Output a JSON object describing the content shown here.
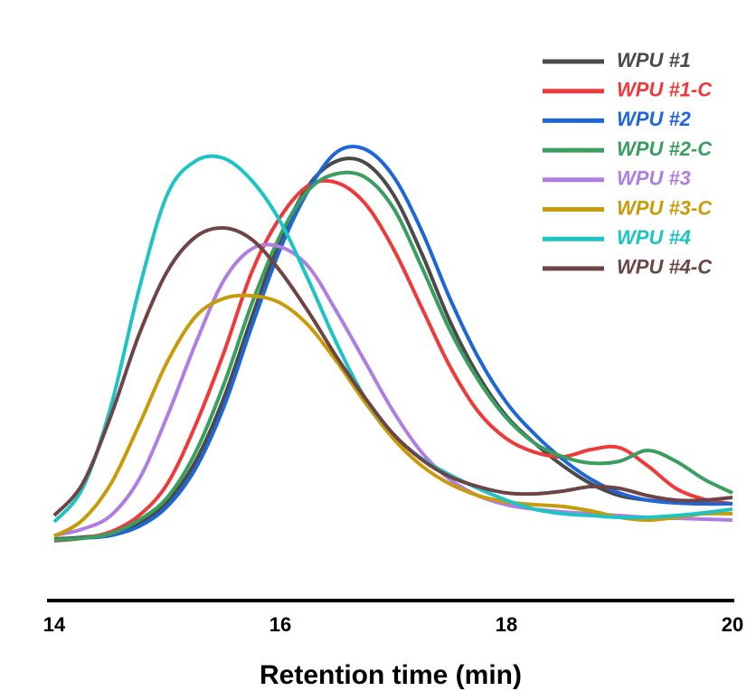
{
  "chart_data": {
    "type": "line",
    "xlabel": "Retention time (min)",
    "x": [
      14,
      14.25,
      14.5,
      14.75,
      15,
      15.25,
      15.5,
      15.75,
      16,
      16.25,
      16.5,
      16.75,
      17,
      17.25,
      17.5,
      17.75,
      18,
      18.25,
      18.5,
      18.75,
      19,
      19.25,
      19.5,
      19.75,
      20
    ],
    "xlim": [
      14,
      20
    ],
    "xticks": [
      14,
      16,
      18,
      20
    ],
    "ylim": [
      0,
      100
    ],
    "legend": "upper right",
    "series": [
      {
        "name": "WPU #1",
        "color": "#4a4a4a",
        "values": [
          4.8,
          5.2,
          6,
          8.4,
          13,
          22,
          36,
          54,
          71,
          83,
          88.4,
          88,
          81,
          68,
          53,
          41,
          32,
          26,
          21,
          17,
          14.4,
          13.4,
          12.8,
          12.6,
          12.6
        ]
      },
      {
        "name": "WPU #1-C",
        "color": "#ee3a3a",
        "values": [
          4.4,
          5,
          6.4,
          10,
          17,
          30,
          46,
          64,
          76,
          83,
          83.6,
          79,
          69,
          56,
          43,
          33,
          27,
          24,
          23,
          24.6,
          25,
          21,
          16,
          13.6,
          12.6
        ]
      },
      {
        "name": "WPU #2",
        "color": "#1f66d6",
        "values": [
          4.6,
          5,
          5.6,
          7.6,
          12,
          20.4,
          34,
          52,
          69,
          82,
          90.4,
          91,
          85,
          73,
          58,
          45,
          35,
          28,
          22.4,
          18,
          15,
          13.4,
          12.8,
          12.6,
          12.6
        ]
      },
      {
        "name": "WPU #2-C",
        "color": "#3a9e5f",
        "values": [
          4.6,
          5,
          6,
          9,
          14,
          24,
          39,
          57,
          72,
          82,
          85.6,
          84.8,
          78,
          65,
          51,
          40,
          31.6,
          26,
          23,
          21.6,
          22,
          24.4,
          22,
          18,
          15
        ]
      },
      {
        "name": "WPU #3",
        "color": "#b07ee0",
        "values": [
          5.6,
          7,
          10,
          18,
          32,
          48,
          62,
          69,
          69.4,
          65,
          55,
          44,
          33,
          24,
          18,
          14.4,
          12.4,
          11.4,
          10.8,
          10.4,
          10,
          9.6,
          9.4,
          9.2,
          9
        ]
      },
      {
        "name": "WPU #3-C",
        "color": "#c89b0a",
        "values": [
          5.4,
          9,
          17,
          30,
          44,
          54,
          58,
          58.6,
          57,
          52,
          44,
          35,
          27,
          21,
          17,
          14.4,
          13,
          12.4,
          12,
          11,
          9.6,
          9,
          9.6,
          10.4,
          10.4
        ]
      },
      {
        "name": "WPU #4",
        "color": "#1ec4c4",
        "values": [
          8.6,
          16,
          34,
          60,
          81,
          88.4,
          89,
          84,
          75,
          62,
          48,
          36,
          28,
          22.6,
          19,
          16,
          13.4,
          11.4,
          10.4,
          10,
          9.6,
          9.6,
          10,
          10.6,
          11.4
        ]
      },
      {
        "name": "WPU #4-C",
        "color": "#6e4444",
        "values": [
          10,
          17,
          32,
          50,
          64,
          71.6,
          73.6,
          71,
          64,
          55,
          45,
          36,
          28,
          22.4,
          18.6,
          16.4,
          15,
          14.8,
          15.4,
          16.4,
          16,
          14.4,
          13.4,
          13.4,
          14
        ]
      }
    ]
  }
}
